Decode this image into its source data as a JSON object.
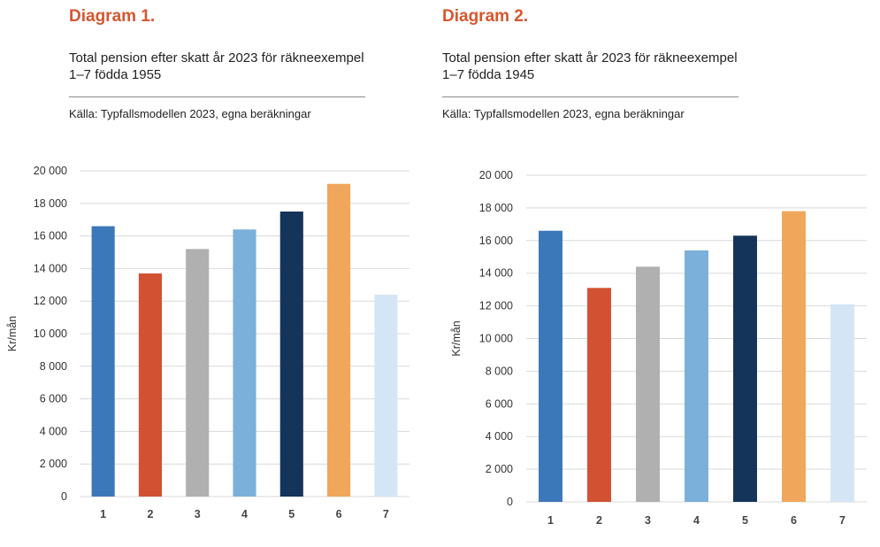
{
  "palette": [
    "#3b78b9",
    "#d15132",
    "#b0b0b0",
    "#7ab0da",
    "#14345a",
    "#f0a65b",
    "#d4e6f6"
  ],
  "charts": [
    {
      "heading": "Diagram 1.",
      "subtitle_line1": "Total pension efter skatt år 2023 för räkneexempel",
      "subtitle_line2": "1–7 födda 1955",
      "source": "Källa: Typfallsmodellen 2023, egna beräkningar"
    },
    {
      "heading": "Diagram 2.",
      "subtitle_line1": "Total pension efter skatt år 2023 för räkneexempel",
      "subtitle_line2": "1–7 födda 1945",
      "source": "Källa: Typfallsmodellen 2023, egna beräkningar"
    }
  ],
  "chart_data": [
    {
      "type": "bar",
      "title": "Total pension efter skatt år 2023 för räkneexempel 1–7 födda 1955",
      "categories": [
        "1",
        "2",
        "3",
        "4",
        "5",
        "6",
        "7"
      ],
      "values": [
        16600,
        13700,
        15200,
        16400,
        17500,
        19200,
        12400
      ],
      "ylabel": "Kr/mån",
      "ylim": [
        0,
        20000
      ],
      "yticks": [
        0,
        2000,
        4000,
        6000,
        8000,
        10000,
        12000,
        14000,
        16000,
        18000,
        20000
      ],
      "ytick_labels": [
        "0",
        "2 000",
        "4 000",
        "6 000",
        "8 000",
        "10 000",
        "12 000",
        "14 000",
        "16 000",
        "18 000",
        "20 000"
      ],
      "grid": true,
      "legend": "none"
    },
    {
      "type": "bar",
      "title": "Total pension efter skatt år 2023 för räkneexempel 1–7 födda 1945",
      "categories": [
        "1",
        "2",
        "3",
        "4",
        "5",
        "6",
        "7"
      ],
      "values": [
        16600,
        13100,
        14400,
        15400,
        16300,
        17800,
        12100
      ],
      "ylabel": "Kr/mån",
      "ylim": [
        0,
        20000
      ],
      "yticks": [
        0,
        2000,
        4000,
        6000,
        8000,
        10000,
        12000,
        14000,
        16000,
        18000,
        20000
      ],
      "ytick_labels": [
        "0",
        "2 000",
        "4 000",
        "6 000",
        "8 000",
        "10 000",
        "12 000",
        "14 000",
        "16 000",
        "18 000",
        "20 000"
      ],
      "grid": true,
      "legend": "none"
    }
  ]
}
